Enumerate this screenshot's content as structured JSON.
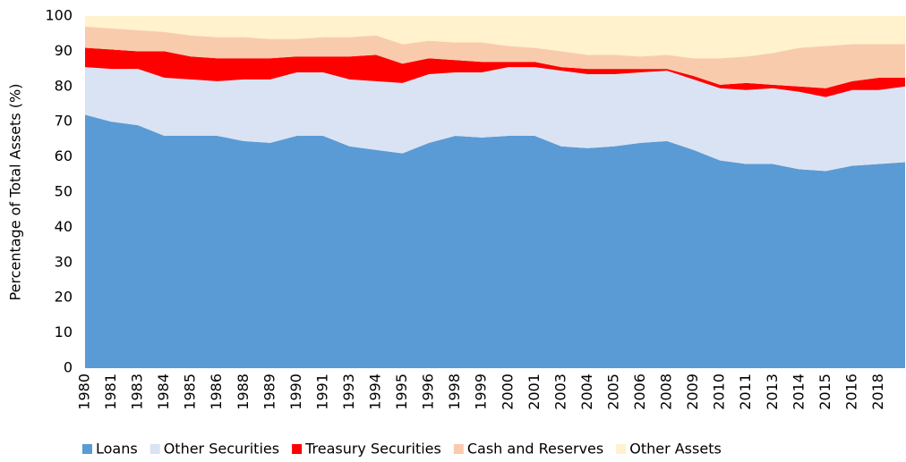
{
  "chart_data": {
    "type": "stacked-area",
    "y_label": "Percentage of Total Assets (%)",
    "categories": [
      "1980",
      "1981",
      "1983",
      "1984",
      "1985",
      "1986",
      "1988",
      "1989",
      "1990",
      "1991",
      "1993",
      "1994",
      "1995",
      "1996",
      "1998",
      "1999",
      "2000",
      "2001",
      "2003",
      "2004",
      "2005",
      "2006",
      "2008",
      "2009",
      "2010",
      "2011",
      "2013",
      "2014",
      "2015",
      "2016",
      "2018",
      null
    ],
    "series": [
      {
        "name": "Loans",
        "color": "#5b9bd5",
        "values": [
          72,
          70,
          69,
          66,
          66,
          66,
          64.5,
          64,
          66,
          66,
          63,
          62,
          61,
          64,
          66,
          65.5,
          66,
          66,
          63,
          62.5,
          63,
          64,
          64.5,
          62,
          59,
          58,
          58,
          56.5,
          56,
          57.5,
          58,
          58.5
        ]
      },
      {
        "name": "Other Securities",
        "color": "#dae3f3",
        "values": [
          13.5,
          15,
          16,
          16.5,
          16,
          15.5,
          17.5,
          18,
          18,
          18,
          19,
          19.5,
          20,
          19.5,
          18,
          18.5,
          19.5,
          19.5,
          21.5,
          21,
          20.5,
          20,
          20,
          20,
          20.5,
          21,
          21.5,
          22,
          21,
          21.5,
          21,
          21.5
        ]
      },
      {
        "name": "Treasury Securities",
        "color": "#ff0000",
        "values": [
          5.5,
          5.5,
          5,
          7.5,
          6.5,
          6.5,
          6,
          6,
          4.5,
          4.5,
          6.5,
          7.5,
          5.5,
          4.5,
          3.5,
          3,
          1.5,
          1.5,
          1,
          1.5,
          1.5,
          1,
          0.5,
          1,
          1,
          2,
          1,
          1.5,
          2.5,
          2.5,
          3.5,
          2.5
        ]
      },
      {
        "name": "Cash and Reserves",
        "color": "#f8cbad",
        "values": [
          6,
          6,
          6,
          5.5,
          6,
          6,
          6,
          5.5,
          5,
          5.5,
          5.5,
          5.5,
          5.5,
          5,
          5,
          5.5,
          4.5,
          4,
          4.5,
          4,
          4,
          3.5,
          4,
          5,
          7.5,
          7.5,
          9,
          11,
          12,
          10.5,
          9.5,
          9.5
        ]
      },
      {
        "name": "Other Assets",
        "color": "#fff2cc",
        "values": [
          3,
          3.5,
          4,
          4.5,
          5.5,
          6,
          6,
          6.5,
          6.5,
          6,
          6,
          5.5,
          8,
          7,
          7.5,
          7.5,
          8.5,
          9,
          10,
          11,
          11,
          11.5,
          11,
          12,
          12,
          11.5,
          10.5,
          9,
          8.5,
          8,
          8,
          8
        ]
      }
    ],
    "ylim": [
      0,
      100
    ],
    "yticks": [
      0,
      10,
      20,
      30,
      40,
      50,
      60,
      70,
      80,
      90,
      100
    ]
  }
}
